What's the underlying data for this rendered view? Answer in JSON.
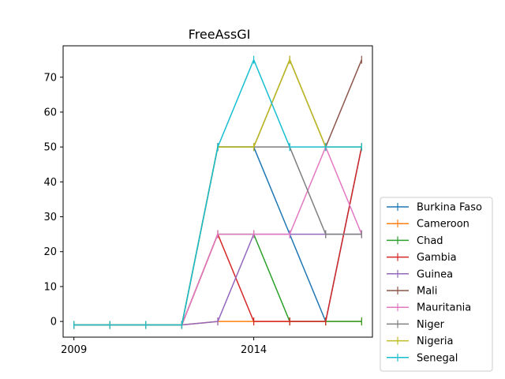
{
  "chart_data": {
    "type": "line",
    "title": "FreeAssGI",
    "xlabel": "",
    "ylabel": "",
    "x": [
      2009,
      2010,
      2011,
      2012,
      2013,
      2014,
      2015,
      2016,
      2017
    ],
    "xlim": [
      2008.7,
      2017.3
    ],
    "ylim": [
      -4.5,
      79
    ],
    "xticks": [
      2009,
      2014
    ],
    "xtick_labels": [
      "2009",
      "2014"
    ],
    "yticks": [
      0,
      10,
      20,
      30,
      40,
      50,
      60,
      70
    ],
    "ytick_labels": [
      "0",
      "10",
      "20",
      "30",
      "40",
      "50",
      "60",
      "70"
    ],
    "grid": false,
    "legend_position": "lower-right, outside plot",
    "series": [
      {
        "name": "Burkina Faso",
        "color": "#1f77b4",
        "values": [
          -1,
          -1,
          -1,
          -1,
          50,
          50,
          25,
          0,
          50
        ]
      },
      {
        "name": "Cameroon",
        "color": "#ff7f0e",
        "values": [
          -1,
          -1,
          -1,
          -1,
          0,
          0,
          0,
          0,
          0
        ]
      },
      {
        "name": "Chad",
        "color": "#2ca02c",
        "values": [
          -1,
          -1,
          -1,
          -1,
          25,
          25,
          0,
          0,
          0
        ]
      },
      {
        "name": "Gambia",
        "color": "#d62728",
        "values": [
          -1,
          -1,
          -1,
          -1,
          25,
          0,
          0,
          0,
          50
        ]
      },
      {
        "name": "Guinea",
        "color": "#9467bd",
        "values": [
          -1,
          -1,
          -1,
          -1,
          0,
          25,
          25,
          25,
          25
        ]
      },
      {
        "name": "Mali",
        "color": "#8c564b",
        "values": [
          -1,
          -1,
          -1,
          -1,
          50,
          50,
          75,
          50,
          75
        ]
      },
      {
        "name": "Mauritania",
        "color": "#e377c2",
        "values": [
          -1,
          -1,
          -1,
          -1,
          25,
          25,
          25,
          50,
          25
        ]
      },
      {
        "name": "Niger",
        "color": "#7f7f7f",
        "values": [
          -1,
          -1,
          -1,
          -1,
          50,
          50,
          50,
          25,
          25
        ]
      },
      {
        "name": "Nigeria",
        "color": "#bcbd22",
        "values": [
          -1,
          -1,
          -1,
          -1,
          50,
          50,
          75,
          50,
          50
        ]
      },
      {
        "name": "Senegal",
        "color": "#17becf",
        "values": [
          -1,
          -1,
          -1,
          -1,
          50,
          75,
          50,
          50,
          50
        ]
      }
    ]
  }
}
